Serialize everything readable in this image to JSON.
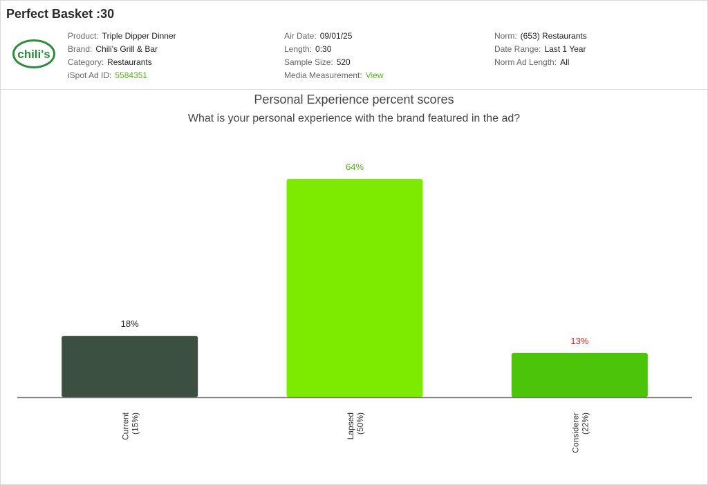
{
  "header": {
    "ad_title": "Perfect Basket :30",
    "logo_text": "chili's",
    "col1": [
      {
        "label": "Product:",
        "value": "Triple Dipper Dinner"
      },
      {
        "label": "Brand:",
        "value": "Chili's Grill & Bar"
      },
      {
        "label": "Category:",
        "value": "Restaurants"
      },
      {
        "label": "iSpot Ad ID:",
        "value": "5584351"
      }
    ],
    "col2": [
      {
        "label": "Air Date:",
        "value": "09/01/25"
      },
      {
        "label": "Length:",
        "value": "0:30"
      },
      {
        "label": "Sample Size:",
        "value": "520"
      },
      {
        "label": "Media Measurement:",
        "value": "View"
      }
    ],
    "col3": [
      {
        "label": "Norm:",
        "value": "(653) Restaurants"
      },
      {
        "label": "Date Range:",
        "value": "Last 1 Year"
      },
      {
        "label": "Norm Ad Length:",
        "value": "All"
      }
    ]
  },
  "colors": {
    "link_green": "#56b21e",
    "logo_green": "#2e8b3e",
    "logo_red": "#d62828"
  },
  "chart_data": {
    "type": "bar",
    "title": "Personal Experience percent scores",
    "subtitle": "What is your personal experience with the brand featured in the ad?",
    "categories": [
      "Current",
      "Lapsed",
      "Considerer"
    ],
    "category_notes": [
      "(15%)",
      "(50%)",
      "(22%)"
    ],
    "values": [
      18,
      64,
      13
    ],
    "value_labels": [
      "18%",
      "64%",
      "13%"
    ],
    "bar_colors": [
      "#3b5040",
      "#7deb00",
      "#4cc40a"
    ],
    "label_colors": [
      "#222222",
      "#56b21e",
      "#e02020"
    ],
    "ylim": [
      0,
      64
    ],
    "grid": false
  }
}
